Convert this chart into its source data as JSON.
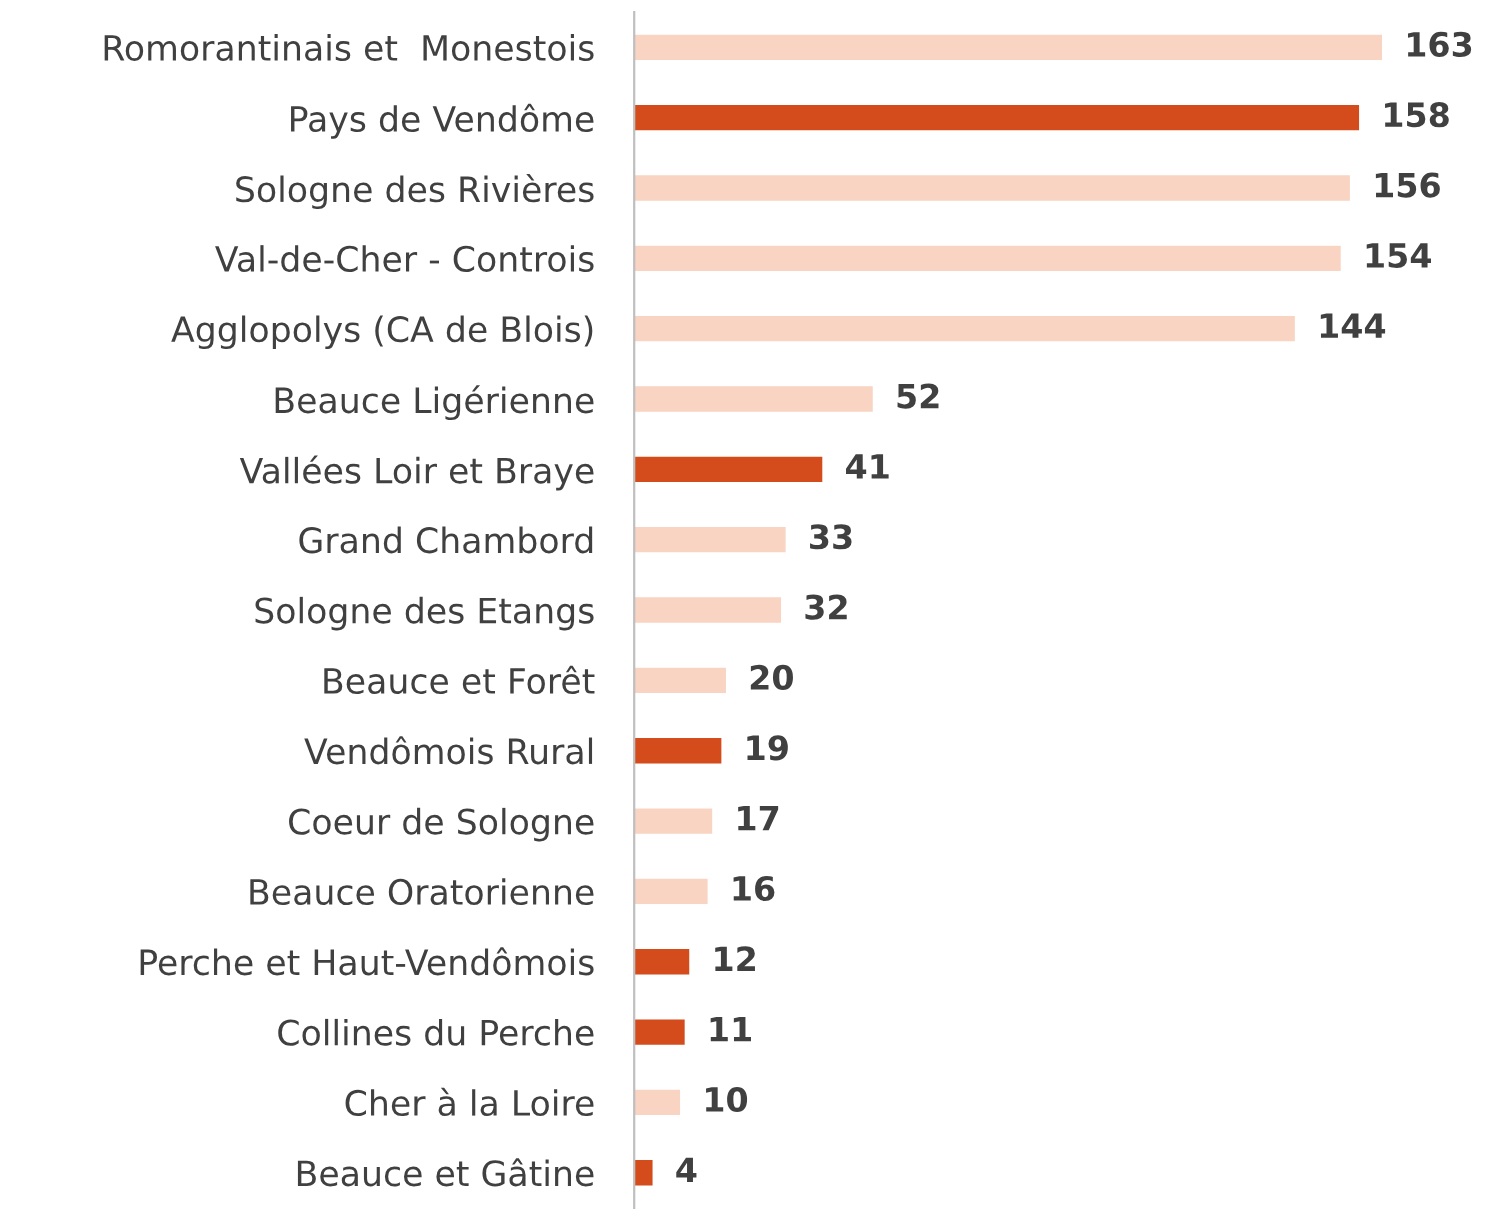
{
  "chart_data": {
    "type": "bar",
    "orientation": "horizontal",
    "data_labels": true,
    "grid": false,
    "legend": false,
    "tick_labels": "y",
    "categories": [
      "Romorantinais et  Monestois",
      "Pays de Vendôme",
      "Sologne des Rivières",
      "Val-de-Cher - Controis",
      "Agglopolys (CA de Blois)",
      "Beauce Ligérienne",
      "Vallées Loir et Braye",
      "Grand Chambord",
      "Sologne des Etangs",
      "Beauce et Forêt",
      "Vendômois Rural",
      "Coeur de Sologne",
      "Beauce Oratorienne",
      "Perche et Haut-Vendômois",
      "Collines du Perche",
      "Cher à la Loire",
      "Beauce et Gâtine"
    ],
    "values": [
      163,
      158,
      156,
      154,
      144,
      52,
      41,
      33,
      32,
      20,
      19,
      17,
      16,
      12,
      11,
      10,
      4
    ],
    "colors": [
      "#f9d4c2",
      "#d44b1c",
      "#f9d4c2",
      "#f9d4c2",
      "#f9d4c2",
      "#f9d4c2",
      "#d44b1c",
      "#f9d4c2",
      "#f9d4c2",
      "#f9d4c2",
      "#d44b1c",
      "#f9d4c2",
      "#f9d4c2",
      "#d44b1c",
      "#d44b1c",
      "#f9d4c2",
      "#d44b1c"
    ]
  }
}
